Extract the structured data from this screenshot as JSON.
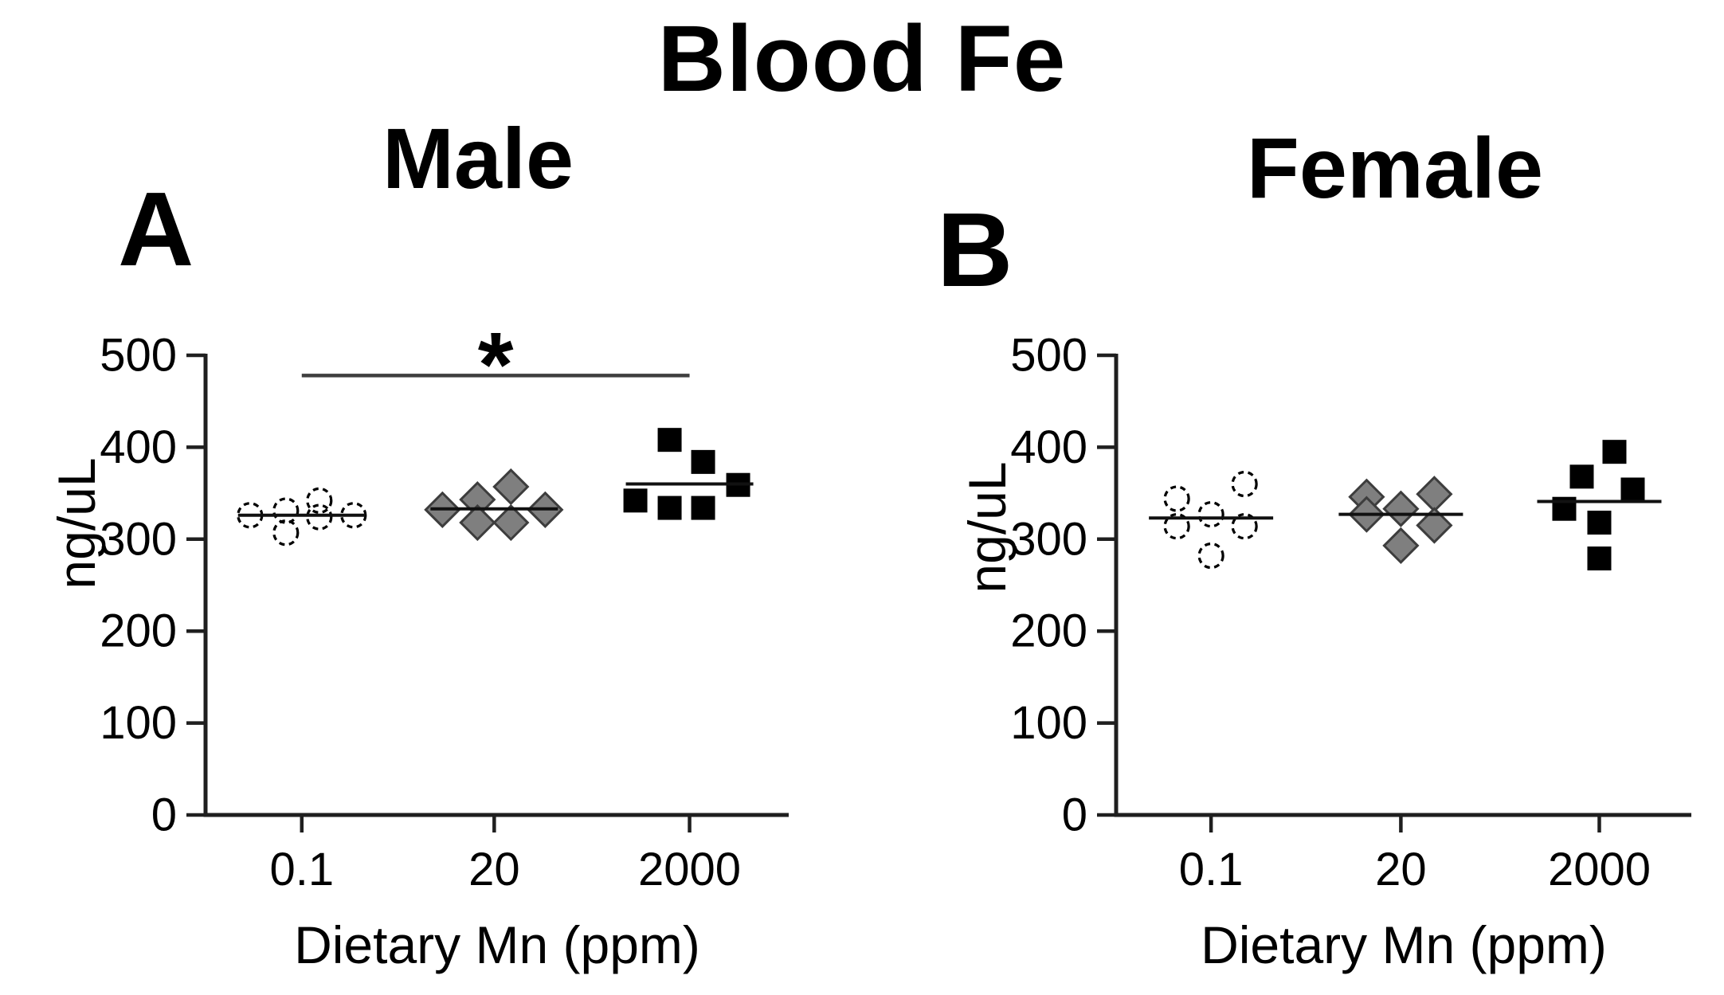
{
  "title": "Blood Fe",
  "colors": {
    "marker_gray": "#7f7f7f",
    "marker_edge": "#3d3d3d",
    "marker_black": "#000000",
    "axis": "#1f1f1f",
    "significance_bar": "#3f3f3f"
  },
  "chart_data": [
    {
      "type": "scatter",
      "panel_label": "A",
      "title": "Male",
      "xlabel": "Dietary Mn (ppm)",
      "ylabel": "ng/uL",
      "ylim": [
        0,
        500
      ],
      "yticks": [
        0,
        100,
        200,
        300,
        400,
        500
      ],
      "categories": [
        "0.1",
        "20",
        "2000"
      ],
      "legend": "none",
      "grid": false,
      "groups": [
        {
          "category": "0.1",
          "marker": "open-circle-dashed",
          "values": [
            326,
            331,
            307,
            342,
            324,
            326
          ],
          "mean": 326,
          "x_offsets": [
            -65,
            -20,
            -20,
            22,
            22,
            65
          ]
        },
        {
          "category": "20",
          "marker": "gray-diamond",
          "values": [
            332,
            343,
            318,
            357,
            318,
            332
          ],
          "mean": 333,
          "x_offsets": [
            -65,
            -21,
            -21,
            21,
            21,
            64
          ]
        },
        {
          "category": "2000",
          "marker": "black-square",
          "values": [
            342,
            408,
            334,
            384,
            334,
            359
          ],
          "mean": 360,
          "x_offsets": [
            -68,
            -25,
            -25,
            17,
            17,
            61
          ]
        }
      ],
      "significance": {
        "label": "*",
        "from": "0.1",
        "to": "2000",
        "bar_value": 478
      }
    },
    {
      "type": "scatter",
      "panel_label": "B",
      "title": "Female",
      "xlabel": "Dietary Mn (ppm)",
      "ylabel": "ng/uL",
      "ylim": [
        0,
        500
      ],
      "yticks": [
        0,
        100,
        200,
        300,
        400,
        500
      ],
      "categories": [
        "0.1",
        "20",
        "2000"
      ],
      "legend": "none",
      "grid": false,
      "groups": [
        {
          "category": "0.1",
          "marker": "open-circle-dashed",
          "values": [
            344,
            314,
            327,
            282,
            360,
            314
          ],
          "mean": 323,
          "x_offsets": [
            -43,
            -43,
            0,
            0,
            42,
            42
          ]
        },
        {
          "category": "20",
          "marker": "gray-diamond",
          "values": [
            346,
            327,
            333,
            293,
            349,
            315
          ],
          "mean": 327,
          "x_offsets": [
            -43,
            -43,
            0,
            0,
            42,
            42
          ]
        },
        {
          "category": "2000",
          "marker": "black-square",
          "values": [
            333,
            368,
            318,
            279,
            395,
            354
          ],
          "mean": 341,
          "x_offsets": [
            -44,
            -22,
            0,
            0,
            19,
            42
          ]
        }
      ],
      "significance": null
    }
  ]
}
